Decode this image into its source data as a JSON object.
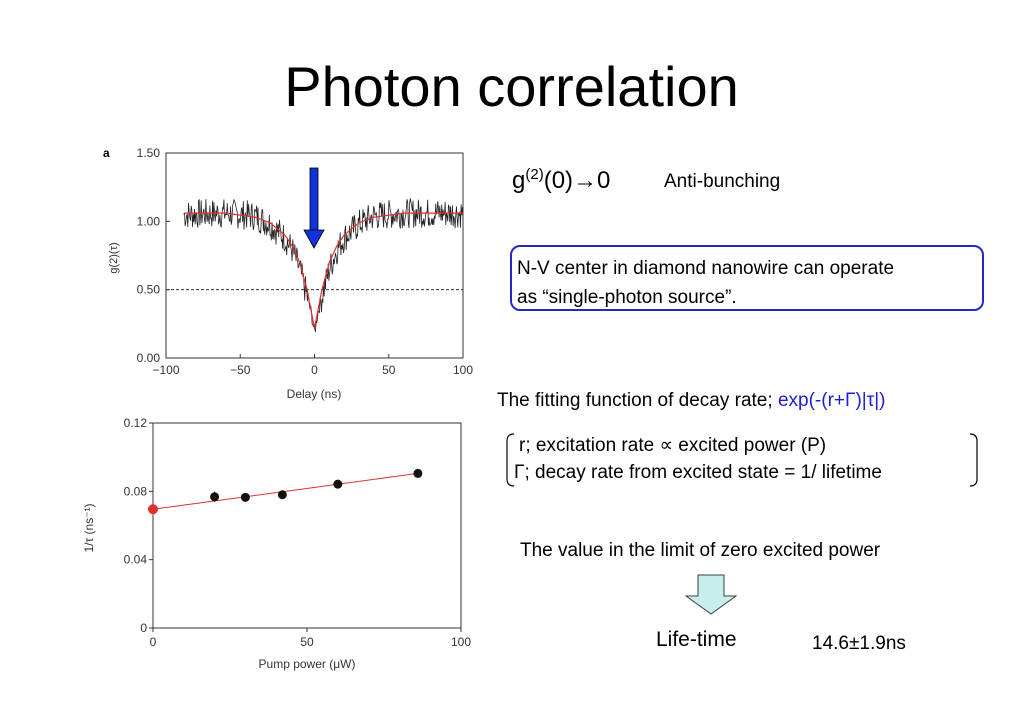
{
  "slide": {
    "title": "Photon correlation",
    "formula": {
      "base": "g",
      "sup": "(2)",
      "arg": "(0)→0"
    },
    "antibunching": "Anti-bunching",
    "box_lines": [
      "N-V center in diamond nanowire can operate",
      "as “single-photon source”."
    ],
    "fitting_prefix": "The fitting function of decay rate;",
    "fitting_expr": "exp(-(r+Γ)|τ|)",
    "r_line": "r; excitation rate ∝ excited power (P)",
    "gamma_line": "Γ; decay rate from excited state = 1/ lifetime",
    "limit_text": "The value in the limit of zero excited power",
    "lifetime_label": "Life-time",
    "lifetime_value": "14.6±1.9ns"
  },
  "chart_data": [
    {
      "type": "line",
      "panel": "a",
      "xlabel": "Delay (ns)",
      "ylabel": "g(2)(τ)",
      "xlim": [
        -100,
        100
      ],
      "ylim": [
        0,
        1.5
      ],
      "xticks": [
        "−100",
        "−50",
        "0",
        "50",
        "100"
      ],
      "yticks": [
        "0.00",
        "0.50",
        "1.00",
        "1.50"
      ],
      "reference_line_y": 0.5,
      "series": [
        {
          "style": "noisy-data",
          "color": "#222222",
          "x": [
            -88,
            -60,
            -40,
            -30,
            -20,
            -15,
            -10,
            -5,
            -2,
            0,
            2,
            5,
            10,
            15,
            20,
            30,
            40,
            60,
            100
          ],
          "y": [
            1.05,
            1.06,
            1.04,
            0.98,
            0.88,
            0.79,
            0.65,
            0.45,
            0.32,
            0.18,
            0.32,
            0.45,
            0.65,
            0.79,
            0.88,
            0.98,
            1.04,
            1.06,
            1.06
          ]
        },
        {
          "style": "fit",
          "color": "#e03030",
          "x": [
            -88,
            -60,
            -40,
            -30,
            -20,
            -15,
            -10,
            -5,
            -2,
            0,
            2,
            5,
            10,
            15,
            20,
            30,
            40,
            60,
            100
          ],
          "y": [
            1.06,
            1.06,
            1.03,
            0.99,
            0.9,
            0.82,
            0.7,
            0.5,
            0.33,
            0.22,
            0.33,
            0.5,
            0.7,
            0.82,
            0.9,
            0.99,
            1.03,
            1.06,
            1.06
          ]
        }
      ],
      "annotation": "blue arrow pointing down at delay 0"
    },
    {
      "type": "scatter",
      "xlabel": "Pump power (μW)",
      "ylabel": "1/τ (ns⁻¹)",
      "xlim": [
        0,
        100
      ],
      "ylim": [
        0,
        0.12
      ],
      "xticks": [
        "0",
        "50",
        "100"
      ],
      "yticks": [
        "0",
        "0.04",
        "0.08",
        "0.12"
      ],
      "points": {
        "x": [
          20,
          30,
          42,
          60,
          86
        ],
        "y": [
          0.0768,
          0.0765,
          0.078,
          0.0842,
          0.0905
        ],
        "err": [
          0.003,
          0.002,
          0.0015,
          0.0015,
          0.0015
        ]
      },
      "extrapolated_point": {
        "x": 0,
        "y": 0.0695,
        "color": "#e03030"
      },
      "fit_line": {
        "x": [
          0,
          86
        ],
        "y": [
          0.0695,
          0.0905
        ],
        "color": "#e03030"
      }
    }
  ]
}
